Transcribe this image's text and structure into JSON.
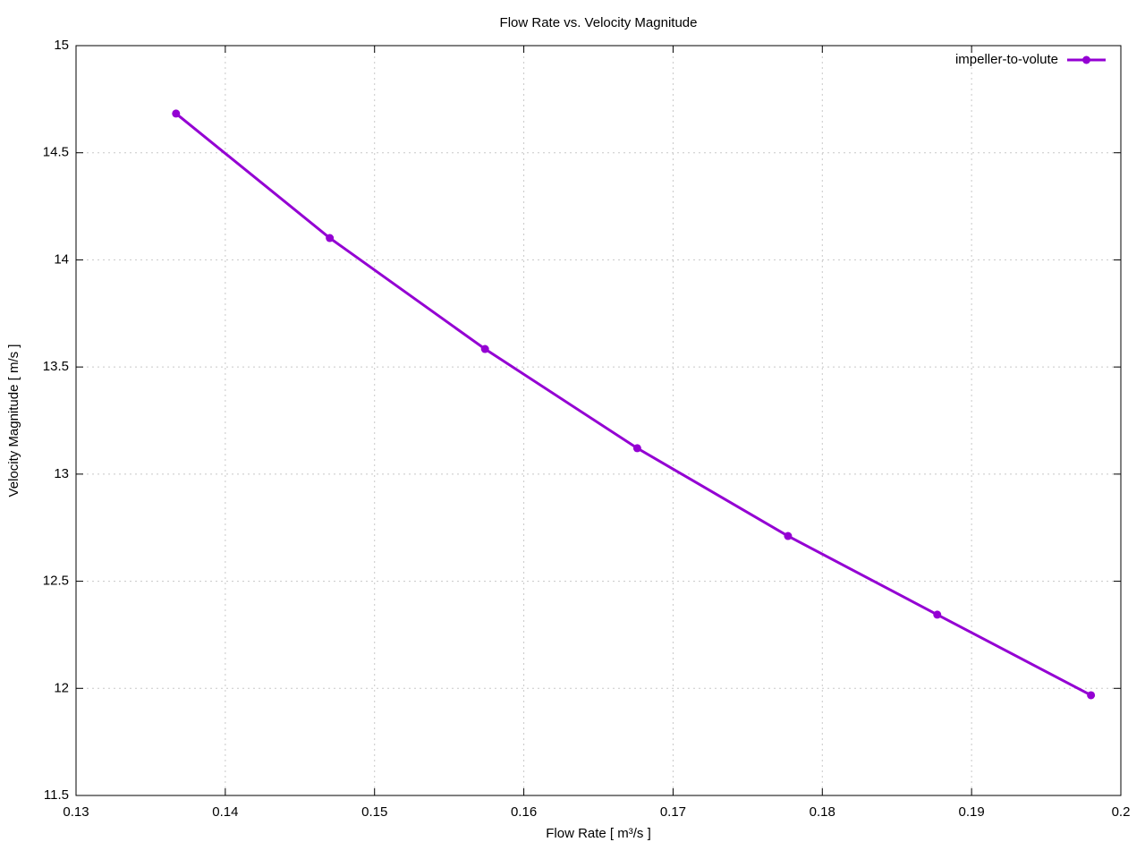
{
  "chart_data": {
    "type": "line",
    "title": "Flow Rate vs. Velocity Magnitude",
    "x_label": "Flow Rate [ m³/s ]",
    "y_label": "Velocity Magnitude [ m/s ]",
    "x": [
      0.1367,
      0.147,
      0.1574,
      0.1676,
      0.1777,
      0.1877,
      0.198
    ],
    "series": [
      {
        "name": "impeller-to-volute",
        "color": "#9400d3",
        "values": [
          14.683,
          14.102,
          13.584,
          13.121,
          12.711,
          12.344,
          11.968
        ]
      }
    ],
    "xlim": [
      0.13,
      0.2
    ],
    "xticks": [
      0.13,
      0.14,
      0.15,
      0.16,
      0.17,
      0.18,
      0.19,
      0.2
    ],
    "ylim": [
      11.5,
      15
    ],
    "yticks": [
      11.5,
      12,
      12.5,
      13,
      13.5,
      14,
      14.5,
      15
    ],
    "grid": true,
    "legend": "top-right"
  }
}
